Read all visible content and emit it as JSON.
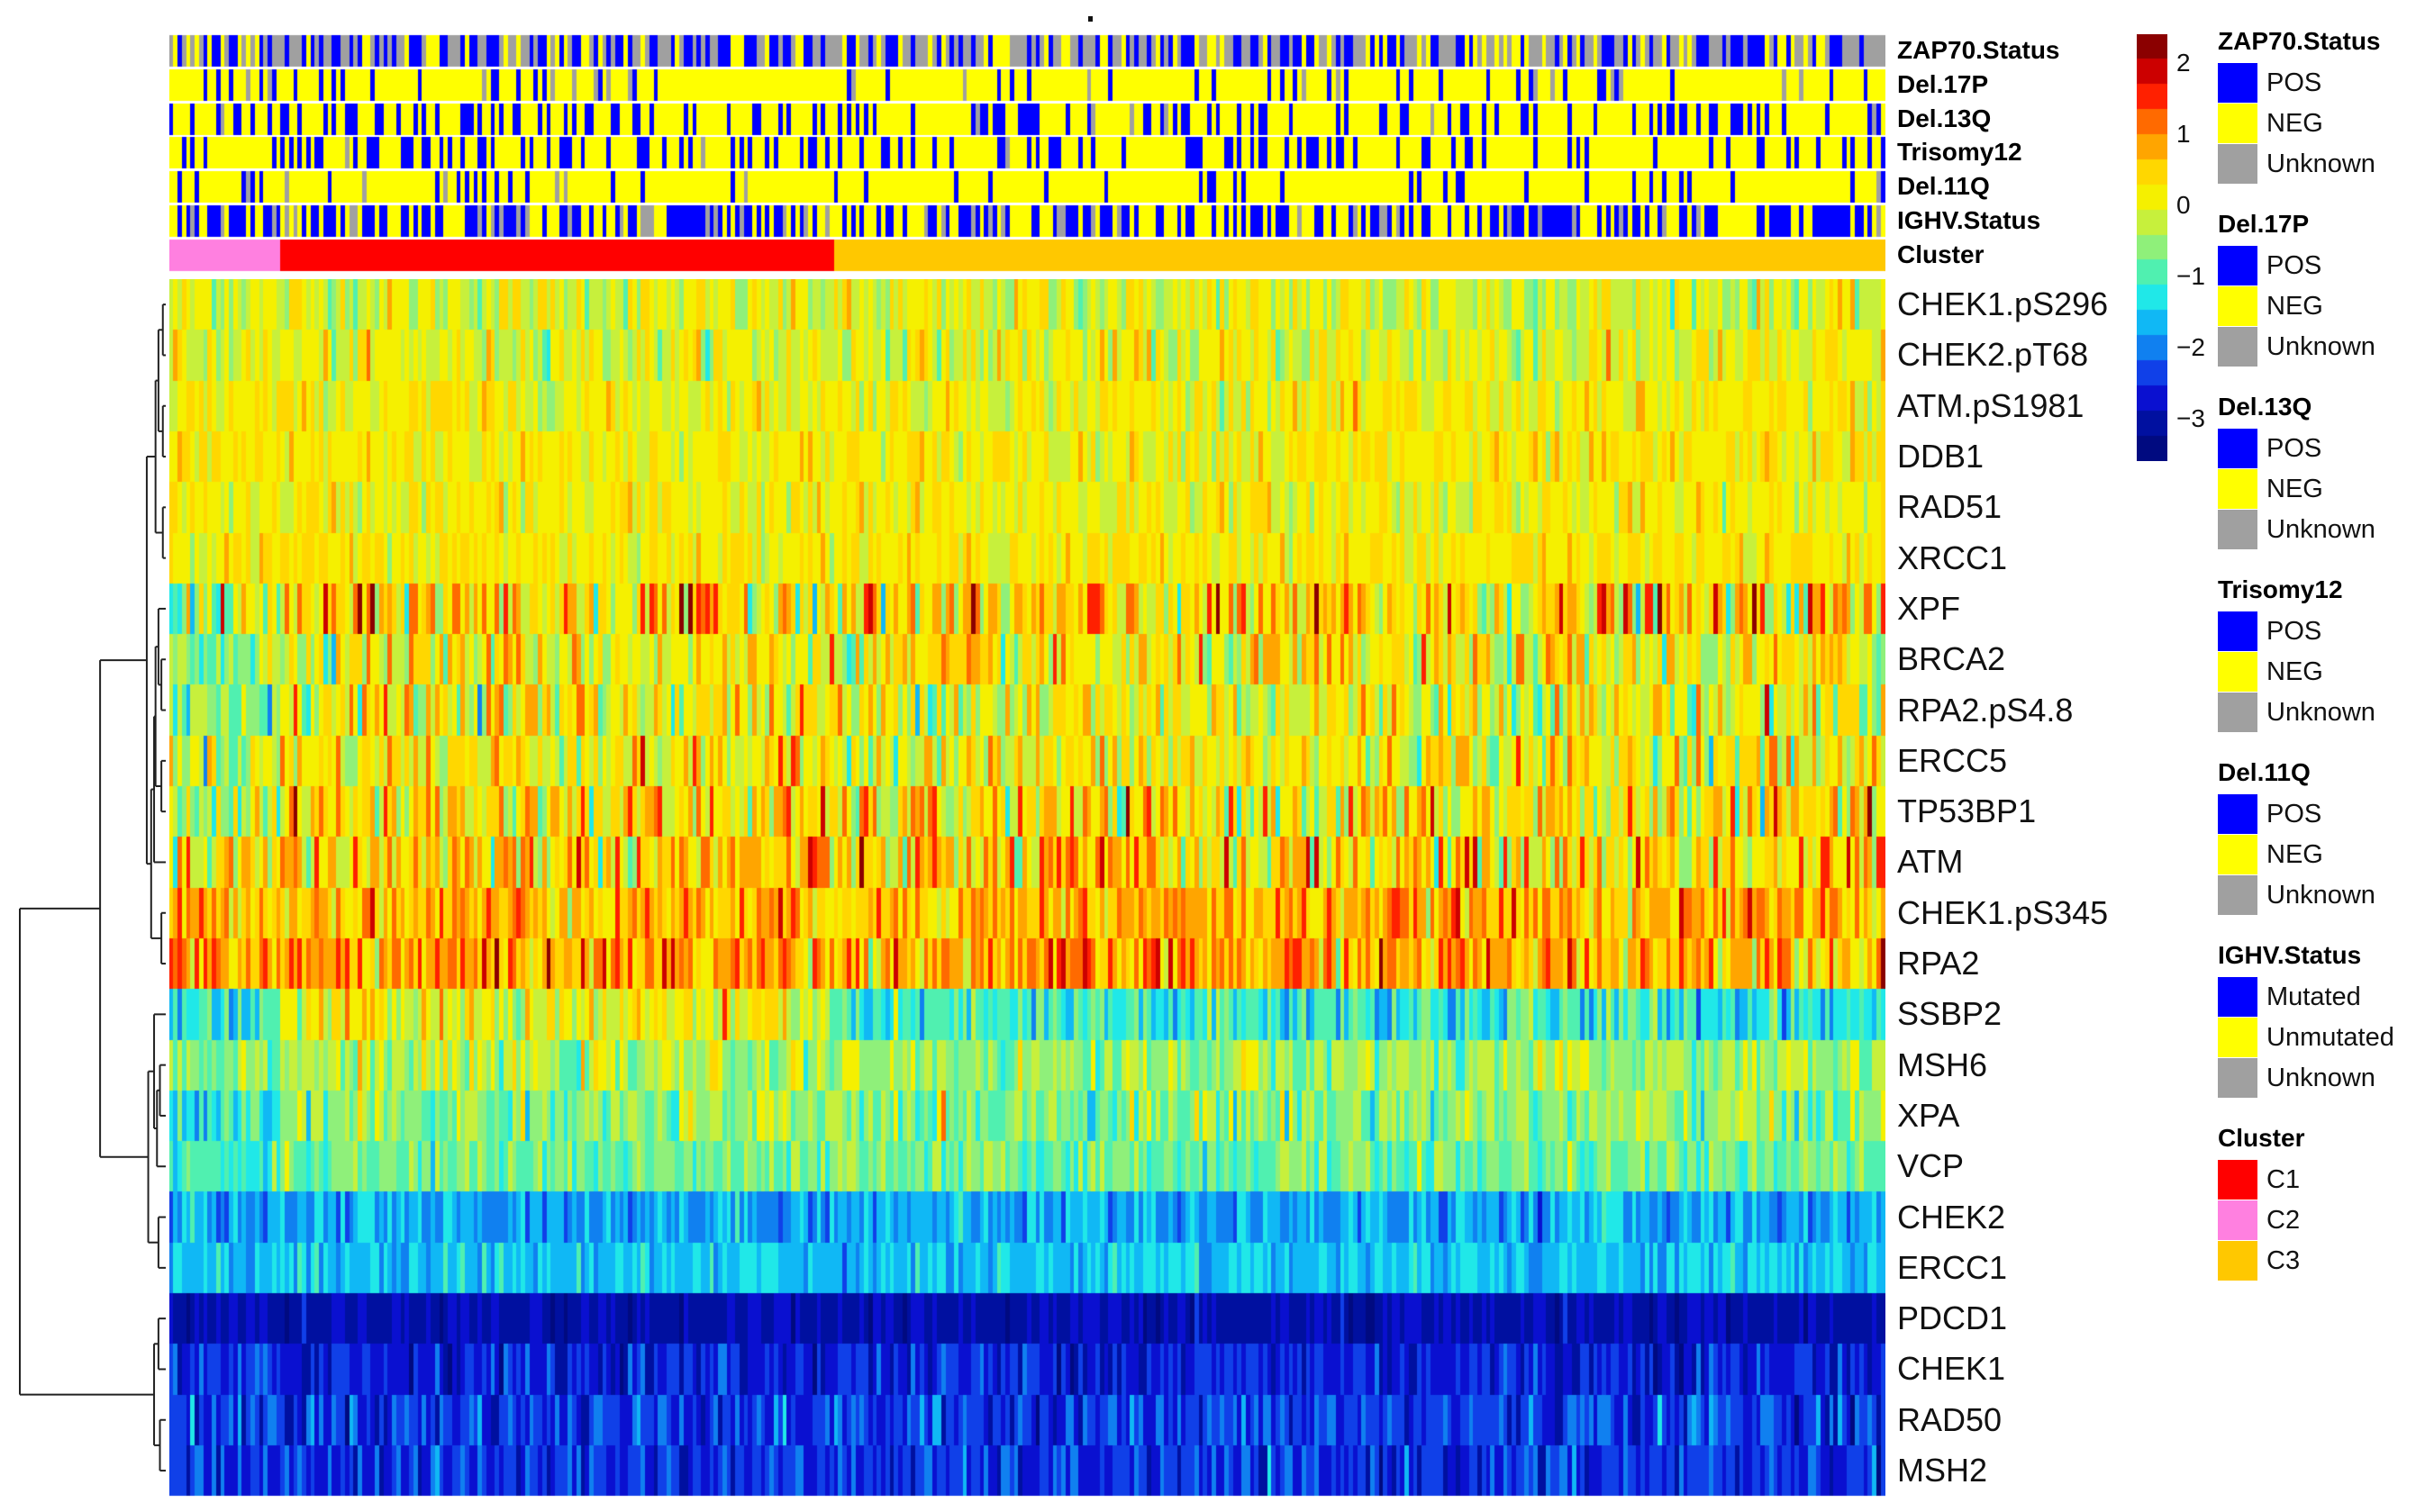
{
  "chart_data": {
    "type": "heatmap",
    "title": "",
    "n_samples": 400,
    "rows": [
      {
        "name": "CHEK1.pS296",
        "mean": -0.1,
        "noise": 0.38,
        "cluster_shift": [
          0.0,
          0.0,
          0.0
        ]
      },
      {
        "name": "CHEK2.pT68",
        "mean": -0.05,
        "noise": 0.38,
        "cluster_shift": [
          0.0,
          0.0,
          0.0
        ]
      },
      {
        "name": "ATM.pS1981",
        "mean": 0.1,
        "noise": 0.3,
        "cluster_shift": [
          0.0,
          0.0,
          0.0
        ]
      },
      {
        "name": "DDB1",
        "mean": 0.15,
        "noise": 0.3,
        "cluster_shift": [
          0.1,
          0.0,
          0.0
        ]
      },
      {
        "name": "RAD51",
        "mean": 0.1,
        "noise": 0.3,
        "cluster_shift": [
          0.0,
          0.0,
          0.0
        ]
      },
      {
        "name": "XRCC1",
        "mean": 0.2,
        "noise": 0.25,
        "cluster_shift": [
          0.0,
          0.0,
          0.0
        ]
      },
      {
        "name": "XPF",
        "mean": 0.3,
        "noise": 0.75,
        "cluster_shift": [
          -0.6,
          0.1,
          0.0
        ]
      },
      {
        "name": "BRCA2",
        "mean": 0.05,
        "noise": 0.55,
        "cluster_shift": [
          -0.5,
          0.1,
          0.0
        ]
      },
      {
        "name": "RPA2.pS4.8",
        "mean": 0.05,
        "noise": 0.6,
        "cluster_shift": [
          -0.6,
          0.1,
          0.0
        ]
      },
      {
        "name": "ERCC5",
        "mean": 0.1,
        "noise": 0.55,
        "cluster_shift": [
          -0.3,
          0.1,
          0.0
        ]
      },
      {
        "name": "TP53BP1",
        "mean": 0.2,
        "noise": 0.65,
        "cluster_shift": [
          -0.4,
          0.1,
          0.0
        ]
      },
      {
        "name": "ATM",
        "mean": 0.35,
        "noise": 0.7,
        "cluster_shift": [
          -0.3,
          0.1,
          0.0
        ]
      },
      {
        "name": "CHEK1.pS345",
        "mean": 0.7,
        "noise": 0.45,
        "cluster_shift": [
          0.0,
          0.0,
          0.0
        ]
      },
      {
        "name": "RPA2",
        "mean": 0.75,
        "noise": 0.55,
        "cluster_shift": [
          0.0,
          0.1,
          0.0
        ]
      },
      {
        "name": "SSBP2",
        "mean": -0.9,
        "noise": 0.45,
        "cluster_shift": [
          -0.2,
          0.9,
          -0.3
        ]
      },
      {
        "name": "MSH6",
        "mean": -0.5,
        "noise": 0.35,
        "cluster_shift": [
          0.0,
          0.1,
          0.0
        ]
      },
      {
        "name": "XPA",
        "mean": -0.6,
        "noise": 0.4,
        "cluster_shift": [
          -0.7,
          0.0,
          0.0
        ]
      },
      {
        "name": "VCP",
        "mean": -0.8,
        "noise": 0.3,
        "cluster_shift": [
          -0.3,
          0.0,
          0.0
        ]
      },
      {
        "name": "CHEK2",
        "mean": -1.75,
        "noise": 0.3,
        "cluster_shift": [
          0.0,
          0.0,
          0.0
        ]
      },
      {
        "name": "ERCC1",
        "mean": -1.55,
        "noise": 0.25,
        "cluster_shift": [
          0.0,
          0.0,
          0.0
        ]
      },
      {
        "name": "PDCD1",
        "mean": -3.0,
        "noise": 0.18,
        "cluster_shift": [
          0.0,
          0.0,
          0.0
        ]
      },
      {
        "name": "CHEK1",
        "mean": -2.6,
        "noise": 0.3,
        "cluster_shift": [
          0.0,
          0.0,
          0.0
        ]
      },
      {
        "name": "RAD50",
        "mean": -2.4,
        "noise": 0.35,
        "cluster_shift": [
          0.0,
          0.0,
          0.0
        ]
      },
      {
        "name": "MSH2",
        "mean": -2.5,
        "noise": 0.3,
        "cluster_shift": [
          0.0,
          0.0,
          0.0
        ]
      }
    ],
    "annotations": [
      {
        "name": "ZAP70.Status",
        "p_pos": 0.35,
        "p_neg": 0.25
      },
      {
        "name": "Del.17P",
        "p_pos": 0.1,
        "p_neg": 0.85
      },
      {
        "name": "Del.13Q",
        "p_pos": 0.3,
        "p_neg": 0.68
      },
      {
        "name": "Trisomy12",
        "p_pos": 0.25,
        "p_neg": 0.73
      },
      {
        "name": "Del.11Q",
        "p_pos": 0.12,
        "p_neg": 0.86
      },
      {
        "name": "IGHV.Status",
        "p_pos": 0.45,
        "p_neg": 0.45
      },
      {
        "name": "Cluster",
        "segments": [
          {
            "cluster": "C2",
            "fraction": 0.064
          },
          {
            "cluster": "C1",
            "fraction": 0.322
          },
          {
            "cluster": "C3",
            "fraction": 0.614
          }
        ]
      }
    ],
    "colorbar": {
      "ticks": [
        "2",
        "1",
        "0",
        "−1",
        "−2",
        "−3"
      ],
      "tick_values": [
        2,
        1,
        0,
        -1,
        -2,
        -3
      ],
      "range": [
        -3.6,
        2.4
      ],
      "colors": [
        "#8b0000",
        "#cc0000",
        "#ff2000",
        "#ff6a00",
        "#ffa500",
        "#ffd700",
        "#f5f000",
        "#c7f03c",
        "#8ff07a",
        "#50f0b0",
        "#20e8e8",
        "#10b8f5",
        "#1080f0",
        "#1040e8",
        "#0a10d0",
        "#0010a0",
        "#000a80"
      ]
    },
    "legends": [
      {
        "title": "ZAP70.Status",
        "items": [
          {
            "label": "POS",
            "color": "#0000ff"
          },
          {
            "label": "NEG",
            "color": "#ffff00"
          },
          {
            "label": "Unknown",
            "color": "#a0a0a0"
          }
        ]
      },
      {
        "title": "Del.17P",
        "items": [
          {
            "label": "POS",
            "color": "#0000ff"
          },
          {
            "label": "NEG",
            "color": "#ffff00"
          },
          {
            "label": "Unknown",
            "color": "#a0a0a0"
          }
        ]
      },
      {
        "title": "Del.13Q",
        "items": [
          {
            "label": "POS",
            "color": "#0000ff"
          },
          {
            "label": "NEG",
            "color": "#ffff00"
          },
          {
            "label": "Unknown",
            "color": "#a0a0a0"
          }
        ]
      },
      {
        "title": "Trisomy12",
        "items": [
          {
            "label": "POS",
            "color": "#0000ff"
          },
          {
            "label": "NEG",
            "color": "#ffff00"
          },
          {
            "label": "Unknown",
            "color": "#a0a0a0"
          }
        ]
      },
      {
        "title": "Del.11Q",
        "items": [
          {
            "label": "POS",
            "color": "#0000ff"
          },
          {
            "label": "NEG",
            "color": "#ffff00"
          },
          {
            "label": "Unknown",
            "color": "#a0a0a0"
          }
        ]
      },
      {
        "title": "IGHV.Status",
        "items": [
          {
            "label": "Mutated",
            "color": "#0000ff"
          },
          {
            "label": "Unmutated",
            "color": "#ffff00"
          },
          {
            "label": "Unknown",
            "color": "#a0a0a0"
          }
        ]
      },
      {
        "title": "Cluster",
        "items": [
          {
            "label": "C1",
            "color": "#ff0000"
          },
          {
            "label": "C2",
            "color": "#ff80e0"
          },
          {
            "label": "C3",
            "color": "#ffc800"
          }
        ]
      }
    ],
    "dendrogram": {
      "merges": [
        [
          0,
          1
        ],
        [
          2,
          3
        ],
        [
          4,
          5
        ],
        [
          24,
          25
        ],
        [
          26,
          27
        ],
        [
          7,
          8
        ],
        [
          6,
          29
        ],
        [
          9,
          10
        ],
        [
          30,
          31
        ],
        [
          11,
          32
        ],
        [
          12,
          13
        ],
        [
          33,
          34
        ],
        [
          28,
          35
        ],
        [
          15,
          16
        ],
        [
          17,
          37
        ],
        [
          14,
          38
        ],
        [
          18,
          19
        ],
        [
          39,
          40
        ],
        [
          36,
          41
        ],
        [
          20,
          21
        ],
        [
          22,
          23
        ],
        [
          43,
          44
        ],
        [
          42,
          45
        ]
      ],
      "heights": [
        0.02,
        0.02,
        0.02,
        0.05,
        0.07,
        0.03,
        0.05,
        0.03,
        0.07,
        0.08,
        0.03,
        0.1,
        0.13,
        0.04,
        0.06,
        0.08,
        0.05,
        0.12,
        0.45,
        0.05,
        0.04,
        0.08,
        1.0
      ]
    }
  }
}
